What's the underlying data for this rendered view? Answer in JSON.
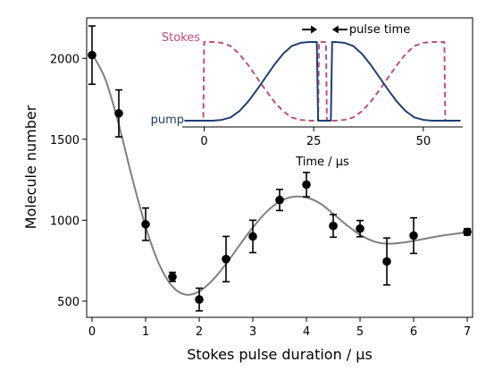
{
  "chart_data": [
    {
      "type": "scatter",
      "xlabel": "Stokes pulse duration / μs",
      "ylabel": "Molecule number",
      "xlim": [
        -0.1,
        7.1
      ],
      "ylim": [
        400,
        2250
      ],
      "xticks": [
        0,
        1,
        2,
        3,
        4,
        5,
        6,
        7
      ],
      "yticks": [
        500,
        1000,
        1500,
        2000
      ],
      "grid": false,
      "series": [
        {
          "kind": "points-with-errorbars",
          "color": "#000000",
          "x": [
            0,
            0.5,
            1,
            1.5,
            2,
            2.5,
            3,
            3.5,
            4,
            4.5,
            5,
            5.5,
            6,
            7
          ],
          "y": [
            2020,
            1660,
            975,
            650,
            510,
            760,
            900,
            1125,
            1220,
            965,
            948,
            745,
            905,
            928
          ],
          "yerr": [
            180,
            145,
            100,
            28,
            70,
            140,
            100,
            65,
            75,
            70,
            50,
            145,
            110,
            20
          ]
        },
        {
          "kind": "fit-curve",
          "color": "#808080",
          "x": [
            0,
            0.25,
            0.5,
            0.75,
            1,
            1.25,
            1.5,
            1.75,
            2,
            2.25,
            2.5,
            2.75,
            3,
            3.25,
            3.5,
            3.75,
            4,
            4.25,
            4.5,
            4.75,
            5,
            5.25,
            5.5,
            5.75,
            6,
            6.25,
            6.5,
            6.75,
            7
          ],
          "y": [
            2030,
            1870,
            1590,
            1260,
            960,
            730,
            590,
            540,
            560,
            630,
            730,
            845,
            955,
            1050,
            1115,
            1145,
            1140,
            1105,
            1040,
            970,
            910,
            870,
            855,
            860,
            872,
            888,
            903,
            915,
            925
          ]
        }
      ]
    },
    {
      "type": "line",
      "xlabel": "Time / μs",
      "xlim": [
        -5,
        59
      ],
      "ylim": [
        -0.08,
        1.08
      ],
      "xticks": [
        0,
        25,
        50
      ],
      "legend": "inline labels at left",
      "series": [
        {
          "name": "Stokes",
          "color": "#c0507a",
          "linestyle": "dashed",
          "x": [
            -1.5,
            -0.2,
            0,
            0.2,
            2,
            4,
            6,
            8,
            10,
            12,
            14,
            16,
            18,
            20,
            22,
            24,
            25.8,
            26,
            26.2,
            27.5,
            27.8,
            28,
            28.2,
            30,
            32,
            34,
            36,
            38,
            40,
            42,
            44,
            46,
            48,
            50,
            52,
            54,
            54.8,
            55,
            55.2,
            57
          ],
          "y": [
            0,
            0,
            1,
            1,
            1,
            0.99,
            0.95,
            0.85,
            0.71,
            0.55,
            0.39,
            0.24,
            0.12,
            0.04,
            0.01,
            0.0,
            0.0,
            0.0,
            1,
            1,
            1,
            0,
            0,
            0.0,
            0.01,
            0.04,
            0.12,
            0.24,
            0.39,
            0.55,
            0.71,
            0.85,
            0.95,
            0.99,
            1,
            1,
            1,
            0,
            0,
            0
          ]
        },
        {
          "name": "pump",
          "color": "#1f3f73",
          "linestyle": "solid",
          "x": [
            -4.5,
            0,
            2,
            4,
            6,
            8,
            10,
            12,
            14,
            16,
            18,
            20,
            22,
            24,
            25.7,
            26,
            26.3,
            28.6,
            28.9,
            29.2,
            30,
            32,
            34,
            36,
            38,
            40,
            42,
            44,
            46,
            48,
            50,
            52,
            54,
            56,
            58.5
          ],
          "y": [
            0,
            0,
            0.0,
            0.01,
            0.04,
            0.12,
            0.24,
            0.39,
            0.55,
            0.71,
            0.85,
            0.95,
            0.99,
            1.0,
            1.0,
            0,
            0,
            0,
            0,
            1.0,
            1.0,
            0.99,
            0.95,
            0.85,
            0.71,
            0.55,
            0.39,
            0.24,
            0.12,
            0.04,
            0.01,
            0.0,
            0,
            0,
            0
          ]
        }
      ],
      "annotations": [
        {
          "text": "pulse time",
          "between_x": [
            26,
            29
          ]
        }
      ]
    }
  ]
}
